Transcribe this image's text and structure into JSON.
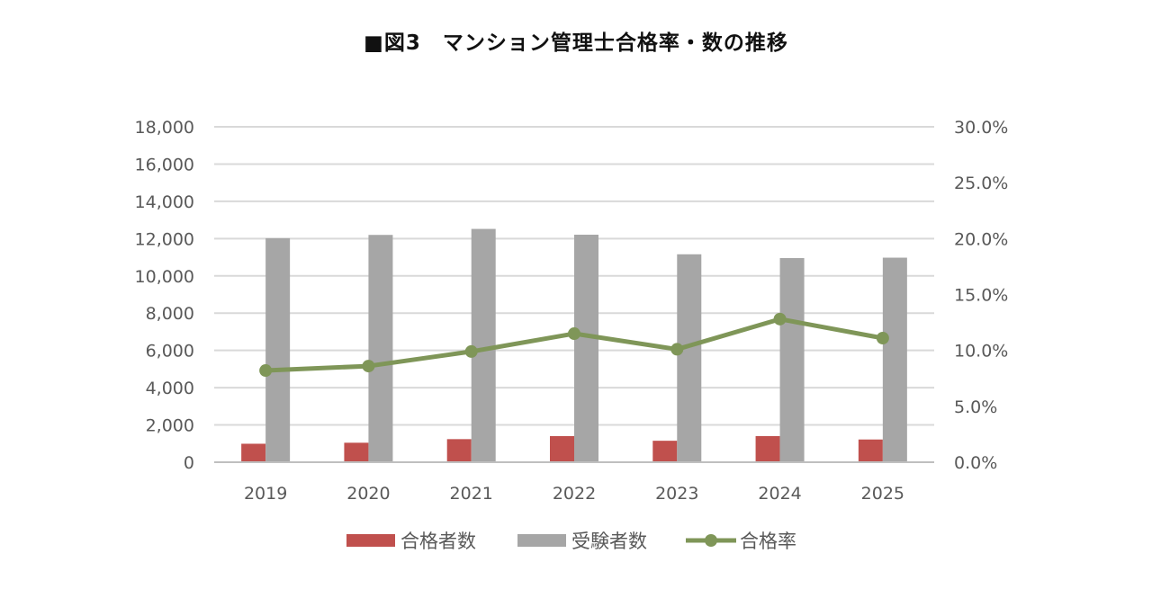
{
  "chart_data": {
    "type": "bar",
    "title": "■図3　マンション管理士合格率・数の推移",
    "categories": [
      "2019",
      "2020",
      "2021",
      "2022",
      "2023",
      "2024",
      "2025"
    ],
    "series": [
      {
        "name": "合格者数",
        "kind": "bar",
        "axis": "left",
        "color": "#c0504d",
        "values": [
          991,
          1045,
          1238,
          1402,
          1151,
          1403,
          1219
        ]
      },
      {
        "name": "受験者数",
        "kind": "bar",
        "axis": "left",
        "color": "#a6a6a6",
        "values": [
          12021,
          12198,
          12520,
          12209,
          11158,
          10956,
          10977
        ]
      },
      {
        "name": "合格率",
        "kind": "line",
        "axis": "right",
        "color": "#7f9658",
        "values": [
          8.2,
          8.6,
          9.9,
          11.5,
          10.1,
          12.8,
          11.1
        ]
      }
    ],
    "y_left": {
      "min": 0,
      "max": 18000,
      "step": 2000,
      "ticks": [
        "0",
        "2,000",
        "4,000",
        "6,000",
        "8,000",
        "10,000",
        "12,000",
        "14,000",
        "16,000",
        "18,000"
      ]
    },
    "y_right": {
      "min": 0,
      "max": 30,
      "step": 5,
      "ticks": [
        "0.0%",
        "5.0%",
        "10.0%",
        "15.0%",
        "20.0%",
        "25.0%",
        "30.0%"
      ]
    },
    "grid": true,
    "legend": {
      "position": "bottom",
      "items": [
        "合格者数",
        "受験者数",
        "合格率"
      ]
    },
    "gridline_color": "#d9d9d9",
    "axis_line_color": "#bfbfbf"
  }
}
